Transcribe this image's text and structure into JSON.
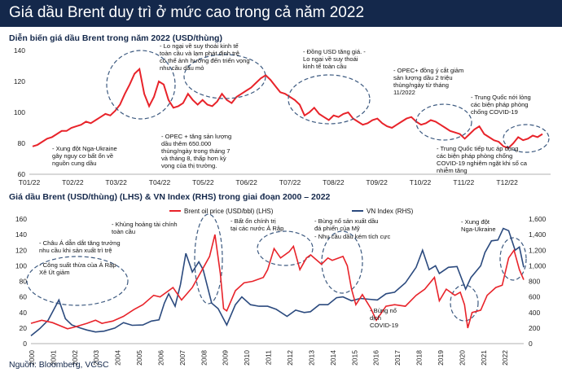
{
  "header": {
    "title": "Giá dầu Brent duy trì ở mức cao trong cả năm 2022"
  },
  "source": "Nguồn: Bloomberg, VCSC",
  "colors": {
    "header_bg": "#14284b",
    "brent": "#e8232a",
    "vn_index": "#2b4a7e",
    "ellipse": "#3d5a80"
  },
  "chart_data": [
    {
      "type": "line",
      "title": "Diễn biến giá dầu Brent trong năm 2022 (USD/thùng)",
      "x_ticks": [
        "T01/22",
        "T02/22",
        "T03/22",
        "T04/22",
        "T05/22",
        "T06/22",
        "T07/22",
        "T08/22",
        "T09/22",
        "T10/22",
        "T11/22",
        "T12/22"
      ],
      "ylim": [
        60,
        140
      ],
      "y_ticks": [
        60,
        80,
        100,
        120,
        140
      ],
      "series": [
        {
          "values": [
            78,
            79,
            81,
            83,
            84,
            86,
            88,
            88,
            90,
            91,
            92,
            94,
            93,
            95,
            97,
            99,
            98,
            101,
            105,
            112,
            118,
            125,
            128,
            112,
            104,
            110,
            120,
            118,
            108,
            103,
            104,
            106,
            112,
            108,
            105,
            108,
            105,
            104,
            107,
            112,
            108,
            106,
            110,
            112,
            114,
            116,
            119,
            122,
            124,
            121,
            117,
            113,
            112,
            110,
            108,
            105,
            98,
            100,
            103,
            99,
            97,
            95,
            98,
            97,
            99,
            100,
            96,
            94,
            92,
            93,
            95,
            96,
            93,
            91,
            90,
            92,
            94,
            96,
            97,
            94,
            92,
            93,
            95,
            94,
            92,
            90,
            88,
            87,
            86,
            83,
            86,
            89,
            91,
            86,
            84,
            82,
            81,
            78,
            77,
            80,
            84,
            82,
            83,
            85,
            84,
            86
          ]
        }
      ],
      "annotations": [
        "- Xung đột Nga-Ukraine gây nguy cơ bất ổn về nguồn cung dầu",
        "- Lo ngại về suy thoái kinh tế toàn cầu và lạm phát định trệ có thể ảnh hưởng đến triển vọng nhu cầu dầu mỏ",
        "- OPEC + tăng sản lượng dầu thêm 650.000 thùng/ngày trong tháng 7 và tháng 8, thấp hơn kỳ vọng của thị trường.",
        "- Đồng USD tăng giá. - Lo ngại về suy thoái kinh tế toàn cầu",
        "- OPEC+ đồng ý cắt giảm sản lượng dầu 2 triệu thùng/ngày từ tháng 11/2022",
        "- Trung Quốc nới lỏng các biện pháp phòng chống COVID-19",
        "- Trung Quốc tiếp tục áp dụng các biện pháp phòng chống COVID-19 nghiêm ngặt khi số ca nhiễm tăng"
      ]
    },
    {
      "type": "line",
      "title": "Giá dầu Brent (USD/thùng) (LHS) & VN Index (RHS) trong giai đoạn 2000 – 2022",
      "x_ticks": [
        "2000",
        "2001",
        "2002",
        "2003",
        "2004",
        "2005",
        "2006",
        "2007",
        "2008",
        "2009",
        "2010",
        "2011",
        "2012",
        "2013",
        "2014",
        "2015",
        "2016",
        "2017",
        "2018",
        "2019",
        "2020",
        "2021",
        "2022"
      ],
      "y_left_lim": [
        0,
        160
      ],
      "y_left_ticks": [
        0,
        20,
        40,
        60,
        80,
        100,
        120,
        140,
        160
      ],
      "y_right_lim": [
        0,
        1600
      ],
      "y_right_ticks": [
        "0",
        "200",
        "400",
        "600",
        "800",
        "1,000",
        "1,200",
        "1,400",
        "1,600"
      ],
      "x_range": [
        2000,
        2022.9
      ],
      "series": [
        {
          "name": "Brent oil price (USD/bbl) (LHS)",
          "axis": "left",
          "points": [
            [
              2000,
              26
            ],
            [
              2000.5,
              30
            ],
            [
              2001,
              27
            ],
            [
              2001.7,
              19
            ],
            [
              2002,
              21
            ],
            [
              2002.6,
              26
            ],
            [
              2003,
              30
            ],
            [
              2003.3,
              26
            ],
            [
              2003.8,
              29
            ],
            [
              2004.3,
              35
            ],
            [
              2004.8,
              44
            ],
            [
              2005.2,
              50
            ],
            [
              2005.7,
              62
            ],
            [
              2006,
              60
            ],
            [
              2006.6,
              72
            ],
            [
              2007,
              56
            ],
            [
              2007.5,
              72
            ],
            [
              2007.9,
              92
            ],
            [
              2008.3,
              112
            ],
            [
              2008.55,
              140
            ],
            [
              2008.8,
              90
            ],
            [
              2008.95,
              45
            ],
            [
              2009.1,
              42
            ],
            [
              2009.5,
              68
            ],
            [
              2009.9,
              78
            ],
            [
              2010.3,
              80
            ],
            [
              2010.8,
              85
            ],
            [
              2011,
              95
            ],
            [
              2011.3,
              122
            ],
            [
              2011.6,
              110
            ],
            [
              2012,
              118
            ],
            [
              2012.2,
              125
            ],
            [
              2012.5,
              95
            ],
            [
              2012.8,
              110
            ],
            [
              2013,
              114
            ],
            [
              2013.5,
              102
            ],
            [
              2013.8,
              110
            ],
            [
              2014,
              107
            ],
            [
              2014.5,
              112
            ],
            [
              2014.7,
              100
            ],
            [
              2014.9,
              70
            ],
            [
              2015.1,
              50
            ],
            [
              2015.4,
              63
            ],
            [
              2015.8,
              45
            ],
            [
              2016.05,
              30
            ],
            [
              2016.5,
              48
            ],
            [
              2016.9,
              50
            ],
            [
              2017.4,
              48
            ],
            [
              2017.9,
              62
            ],
            [
              2018.3,
              70
            ],
            [
              2018.75,
              85
            ],
            [
              2018.98,
              55
            ],
            [
              2019.3,
              70
            ],
            [
              2019.7,
              62
            ],
            [
              2019.95,
              66
            ],
            [
              2020.15,
              50
            ],
            [
              2020.3,
              20
            ],
            [
              2020.5,
              40
            ],
            [
              2020.9,
              43
            ],
            [
              2021.2,
              62
            ],
            [
              2021.6,
              72
            ],
            [
              2021.9,
              75
            ],
            [
              2022.2,
              110
            ],
            [
              2022.45,
              120
            ],
            [
              2022.7,
              95
            ],
            [
              2022.9,
              82
            ]
          ]
        },
        {
          "name": "VN Index (RHS)",
          "axis": "right",
          "points": [
            [
              2000,
              100
            ],
            [
              2000.4,
              190
            ],
            [
              2000.8,
              300
            ],
            [
              2001.3,
              560
            ],
            [
              2001.6,
              320
            ],
            [
              2001.9,
              240
            ],
            [
              2002.3,
              200
            ],
            [
              2002.6,
              175
            ],
            [
              2003,
              150
            ],
            [
              2003.4,
              160
            ],
            [
              2003.9,
              200
            ],
            [
              2004.3,
              270
            ],
            [
              2004.7,
              235
            ],
            [
              2005.2,
              240
            ],
            [
              2005.6,
              290
            ],
            [
              2005.95,
              305
            ],
            [
              2006.2,
              520
            ],
            [
              2006.4,
              640
            ],
            [
              2006.7,
              480
            ],
            [
              2006.95,
              760
            ],
            [
              2007.2,
              1160
            ],
            [
              2007.5,
              920
            ],
            [
              2007.8,
              1050
            ],
            [
              2008,
              950
            ],
            [
              2008.4,
              520
            ],
            [
              2008.7,
              450
            ],
            [
              2009.1,
              240
            ],
            [
              2009.5,
              500
            ],
            [
              2009.8,
              600
            ],
            [
              2010.2,
              500
            ],
            [
              2010.6,
              480
            ],
            [
              2011,
              480
            ],
            [
              2011.4,
              440
            ],
            [
              2011.9,
              350
            ],
            [
              2012.3,
              430
            ],
            [
              2012.7,
              400
            ],
            [
              2012.99,
              410
            ],
            [
              2013.4,
              500
            ],
            [
              2013.8,
              500
            ],
            [
              2014.2,
              590
            ],
            [
              2014.5,
              600
            ],
            [
              2014.9,
              550
            ],
            [
              2015.3,
              580
            ],
            [
              2015.7,
              570
            ],
            [
              2016.1,
              560
            ],
            [
              2016.5,
              640
            ],
            [
              2016.9,
              660
            ],
            [
              2017.4,
              780
            ],
            [
              2017.9,
              980
            ],
            [
              2018.2,
              1200
            ],
            [
              2018.5,
              950
            ],
            [
              2018.8,
              1000
            ],
            [
              2018.98,
              900
            ],
            [
              2019.4,
              980
            ],
            [
              2019.8,
              990
            ],
            [
              2020.2,
              700
            ],
            [
              2020.45,
              850
            ],
            [
              2020.9,
              1000
            ],
            [
              2021.1,
              1170
            ],
            [
              2021.4,
              1320
            ],
            [
              2021.7,
              1330
            ],
            [
              2021.95,
              1480
            ],
            [
              2022.2,
              1450
            ],
            [
              2022.5,
              1200
            ],
            [
              2022.7,
              1240
            ],
            [
              2022.9,
              980
            ]
          ]
        }
      ],
      "annotations": [
        "- Châu Á dẫn dắt tăng trưởng nhu cầu khi sản xuất trì trệ",
        "- Công suất thừa của Ả Rập Xê Út giảm",
        "- Khủng hoảng tài chính toàn cầu",
        "- Bất ổn chính trị tại các nước Ả Rập",
        "- Bùng nổ sản xuất dầu đá phiến của Mỹ",
        "- Nhu cầu dầu kém tích cực",
        "- Bùng nổ dịch COVID-19",
        "- Xung đột Nga-Ukraine"
      ]
    }
  ]
}
